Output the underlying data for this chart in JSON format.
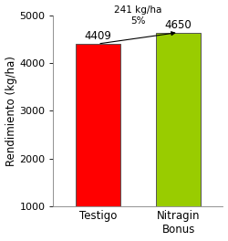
{
  "categories": [
    "Testigo",
    "Nitragin\nBonus"
  ],
  "values": [
    4409,
    4650
  ],
  "bar_colors": [
    "#ff0000",
    "#99cc00"
  ],
  "bar_labels": [
    "4409",
    "4650"
  ],
  "ylabel": "Rendimiento (kg/ha)",
  "ylim": [
    1000,
    5000
  ],
  "yticks": [
    1000,
    2000,
    3000,
    4000,
    5000
  ],
  "annotation_text": "241 kg/ha\n5%",
  "background_color": "#ffffff",
  "bar_width": 0.55,
  "label_fontsize": 8.5,
  "tick_fontsize": 8,
  "ylabel_fontsize": 8.5,
  "annot_fontsize": 7.5,
  "bar_edgecolor": "#555555"
}
